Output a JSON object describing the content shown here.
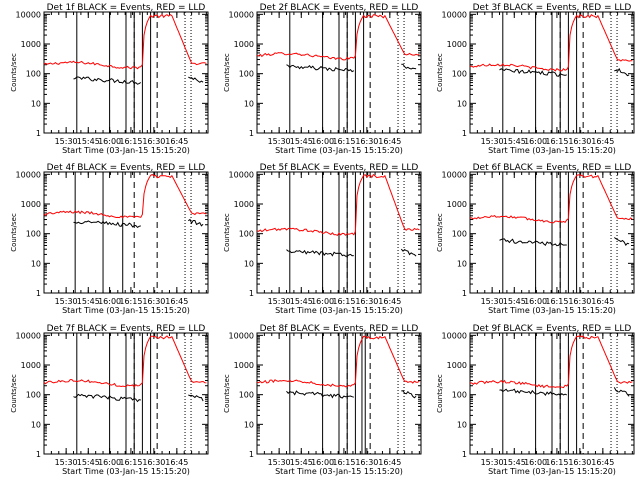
{
  "figure": {
    "xlabel": "Start Time (03-Jan-15 15:15:20)",
    "ylabel": "Counts/sec"
  },
  "chart_data": [
    {
      "type": "line",
      "title": "Det 1f BLACK = Events, RED = LLD",
      "xlabel": "Start Time (03-Jan-15 15:15:20)",
      "ylabel": "Counts/sec",
      "xticks": [
        "15:30",
        "15:45",
        "16:00",
        "16:15",
        "16:30",
        "16:45"
      ],
      "yticks": [
        "1",
        "10",
        "100",
        "1000",
        "10000"
      ],
      "yscale": "log",
      "ylim": [
        1,
        12000
      ],
      "series": [
        {
          "name": "BLACK = Events",
          "color": "#000000"
        },
        {
          "name": "RED = LLD",
          "color": "#ff0000"
        }
      ]
    },
    {
      "type": "line",
      "title": "Det 2f BLACK = Events, RED = LLD",
      "xlabel": "Start Time (03-Jan-15 15:15:20)",
      "ylabel": "Counts/sec",
      "xticks": [
        "15:30",
        "15:45",
        "16:00",
        "16:15",
        "16:30",
        "16:45"
      ],
      "yticks": [
        "1",
        "10",
        "100",
        "1000",
        "10000"
      ],
      "yscale": "log",
      "ylim": [
        1,
        12000
      ],
      "series": [
        {
          "name": "BLACK = Events",
          "color": "#000000"
        },
        {
          "name": "RED = LLD",
          "color": "#ff0000"
        }
      ]
    },
    {
      "type": "line",
      "title": "Det 3f BLACK = Events, RED = LLD",
      "xlabel": "Start Time (03-Jan-15 15:15:20)",
      "ylabel": "Counts/sec",
      "xticks": [
        "15:30",
        "15:45",
        "16:00",
        "16:15",
        "16:30",
        "16:45"
      ],
      "yticks": [
        "1",
        "10",
        "100",
        "1000",
        "10000"
      ],
      "yscale": "log",
      "ylim": [
        1,
        12000
      ],
      "series": [
        {
          "name": "BLACK = Events",
          "color": "#000000"
        },
        {
          "name": "RED = LLD",
          "color": "#ff0000"
        }
      ]
    },
    {
      "type": "line",
      "title": "Det 4f BLACK = Events, RED = LLD",
      "xlabel": "Start Time (03-Jan-15 15:15:20)",
      "ylabel": "Counts/sec",
      "xticks": [
        "15:30",
        "15:45",
        "16:00",
        "16:15",
        "16:30",
        "16:45"
      ],
      "yticks": [
        "1",
        "10",
        "100",
        "1000",
        "10000"
      ],
      "yscale": "log",
      "ylim": [
        1,
        12000
      ],
      "series": [
        {
          "name": "BLACK = Events",
          "color": "#000000"
        },
        {
          "name": "RED = LLD",
          "color": "#ff0000"
        }
      ]
    },
    {
      "type": "line",
      "title": "Det 5f BLACK = Events, RED = LLD",
      "xlabel": "Start Time (03-Jan-15 15:15:20)",
      "ylabel": "Counts/sec",
      "xticks": [
        "15:30",
        "15:45",
        "16:00",
        "16:15",
        "16:30",
        "16:45"
      ],
      "yticks": [
        "1",
        "10",
        "100",
        "1000",
        "10000"
      ],
      "yscale": "log",
      "ylim": [
        1,
        12000
      ],
      "series": [
        {
          "name": "BLACK = Events",
          "color": "#000000"
        },
        {
          "name": "RED = LLD",
          "color": "#ff0000"
        }
      ]
    },
    {
      "type": "line",
      "title": "Det 6f BLACK = Events, RED = LLD",
      "xlabel": "Start Time (03-Jan-15 15:15:20)",
      "ylabel": "Counts/sec",
      "xticks": [
        "15:30",
        "15:45",
        "16:00",
        "16:15",
        "16:30",
        "16:45"
      ],
      "yticks": [
        "1",
        "10",
        "100",
        "1000",
        "10000"
      ],
      "yscale": "log",
      "ylim": [
        1,
        12000
      ],
      "series": [
        {
          "name": "BLACK = Events",
          "color": "#000000"
        },
        {
          "name": "RED = LLD",
          "color": "#ff0000"
        }
      ]
    },
    {
      "type": "line",
      "title": "Det 7f BLACK = Events, RED = LLD",
      "xlabel": "Start Time (03-Jan-15 15:15:20)",
      "ylabel": "Counts/sec",
      "xticks": [
        "15:30",
        "15:45",
        "16:00",
        "16:15",
        "16:30",
        "16:45"
      ],
      "yticks": [
        "1",
        "10",
        "100",
        "1000",
        "10000"
      ],
      "yscale": "log",
      "ylim": [
        1,
        12000
      ],
      "series": [
        {
          "name": "BLACK = Events",
          "color": "#000000"
        },
        {
          "name": "RED = LLD",
          "color": "#ff0000"
        }
      ]
    },
    {
      "type": "line",
      "title": "Det 8f BLACK = Events, RED = LLD",
      "xlabel": "Start Time (03-Jan-15 15:15:20)",
      "ylabel": "Counts/sec",
      "xticks": [
        "15:30",
        "15:45",
        "16:00",
        "16:15",
        "16:30",
        "16:45"
      ],
      "yticks": [
        "1",
        "10",
        "100",
        "1000",
        "10000"
      ],
      "yscale": "log",
      "ylim": [
        1,
        12000
      ],
      "series": [
        {
          "name": "BLACK = Events",
          "color": "#000000"
        },
        {
          "name": "RED = LLD",
          "color": "#ff0000"
        }
      ]
    },
    {
      "type": "line",
      "title": "Det 9f BLACK = Events, RED = LLD",
      "xlabel": "Start Time (03-Jan-15 15:15:20)",
      "ylabel": "Counts/sec",
      "xticks": [
        "15:30",
        "15:45",
        "16:00",
        "16:15",
        "16:30",
        "16:45"
      ],
      "yticks": [
        "1",
        "10",
        "100",
        "1000",
        "10000"
      ],
      "yscale": "log",
      "ylim": [
        1,
        12000
      ],
      "series": [
        {
          "name": "BLACK = Events",
          "color": "#000000"
        },
        {
          "name": "RED = LLD",
          "color": "#ff0000"
        }
      ]
    }
  ],
  "colors": {
    "events": "#000000",
    "lld": "#ff0000",
    "axes": "#000000"
  }
}
